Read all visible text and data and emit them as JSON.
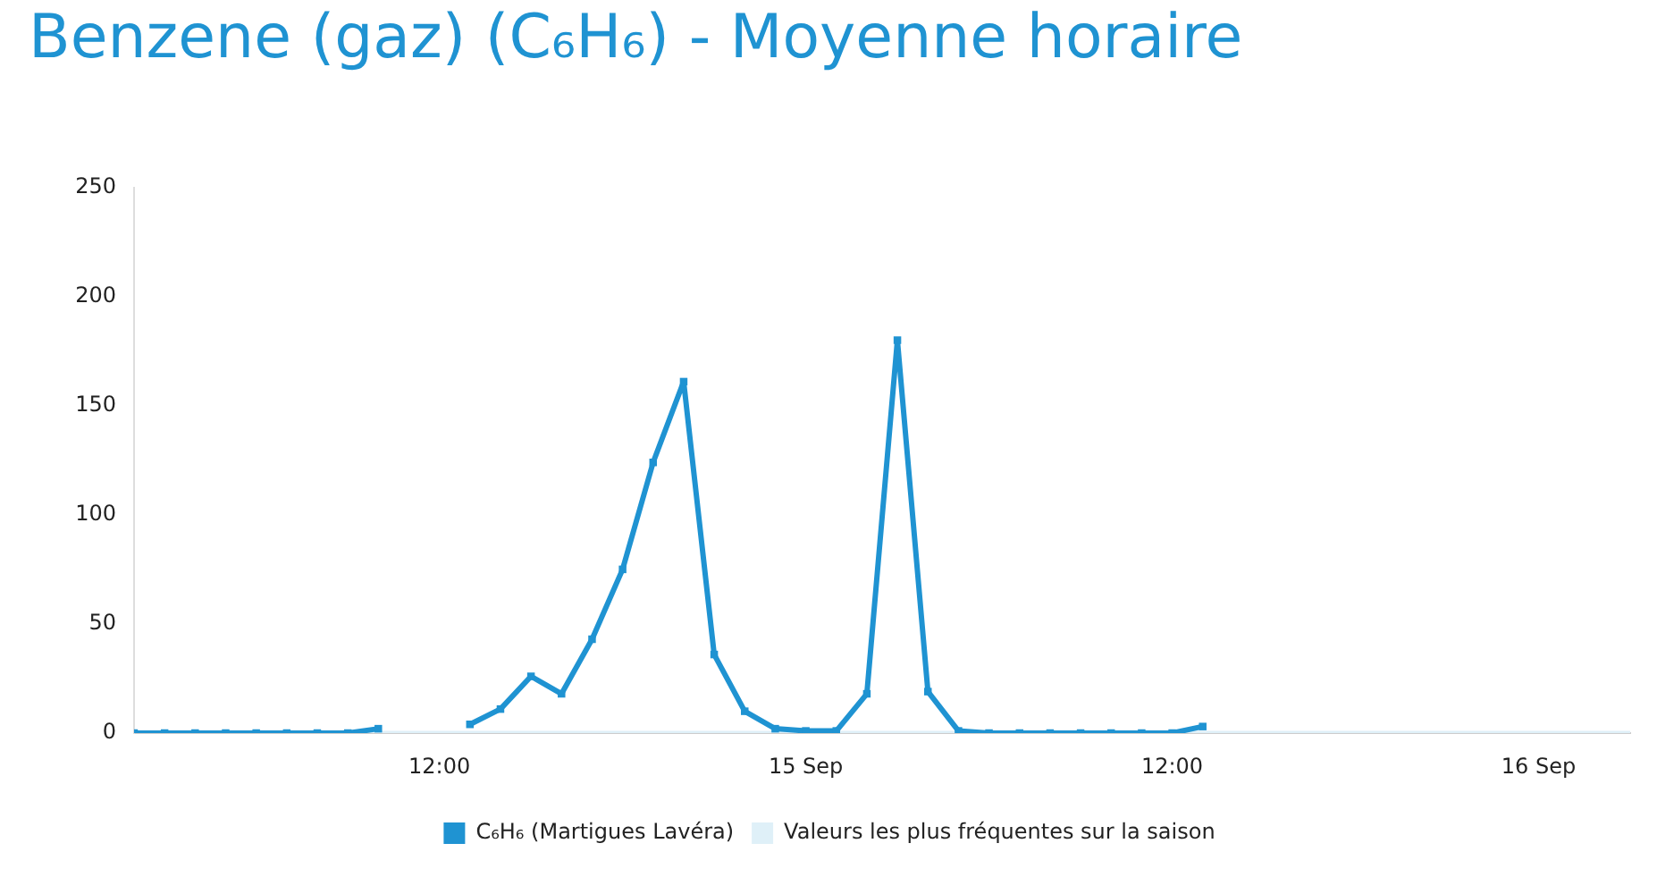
{
  "chart_data": {
    "type": "line",
    "title": "Benzene (gaz) (C₆H₆) - Moyenne horaire",
    "x": [
      "--09-14T02:00",
      "--09-14T03:00",
      "--09-14T04:00",
      "--09-14T05:00",
      "--09-14T06:00",
      "--09-14T07:00",
      "--09-14T08:00",
      "--09-14T09:00",
      "--09-14T10:00",
      "--09-14T11:00",
      "--09-14T12:00",
      "--09-14T13:00",
      "--09-14T14:00",
      "--09-14T15:00",
      "--09-14T16:00",
      "--09-14T17:00",
      "--09-14T18:00",
      "--09-14T19:00",
      "--09-14T20:00",
      "--09-14T21:00",
      "--09-14T22:00",
      "--09-14T23:00",
      "--09-15T00:00",
      "--09-15T01:00",
      "--09-15T02:00",
      "--09-15T03:00",
      "--09-15T04:00",
      "--09-15T05:00",
      "--09-15T06:00",
      "--09-15T07:00",
      "--09-15T08:00",
      "--09-15T09:00",
      "--09-15T10:00",
      "--09-15T11:00",
      "--09-15T12:00",
      "--09-15T13:00"
    ],
    "series": [
      {
        "name": "C₆H₆ (Martigues Lavéra)",
        "color": "#1f93d2",
        "values": [
          0,
          0,
          0,
          0,
          0,
          0,
          0,
          0,
          2,
          null,
          null,
          4,
          11,
          26,
          18,
          43,
          75,
          124,
          161,
          36,
          10,
          2,
          1,
          1,
          18,
          180,
          19,
          1,
          0,
          0,
          0,
          0,
          0,
          0,
          0,
          3
        ]
      }
    ],
    "bands": [
      {
        "axis": "y",
        "from": 0,
        "to": 1,
        "label": "Valeurs les plus fréquentes sur la saison",
        "color": "#dff0f8"
      }
    ],
    "xlim": [
      "--09-14T02:00",
      "--09-16T03:00"
    ],
    "xticks": [
      {
        "value": "--09-14T12:00",
        "label": "12:00"
      },
      {
        "value": "--09-15",
        "label": "15 Sep"
      },
      {
        "value": "--09-15T12:00",
        "label": "12:00"
      },
      {
        "value": "--09-16",
        "label": "16 Sep"
      }
    ],
    "ylim": [
      0,
      250
    ],
    "yticks": [
      0,
      50,
      100,
      150,
      200,
      250
    ],
    "grid": false,
    "legend": "bottom",
    "marker": "square",
    "line_style": "solid"
  }
}
